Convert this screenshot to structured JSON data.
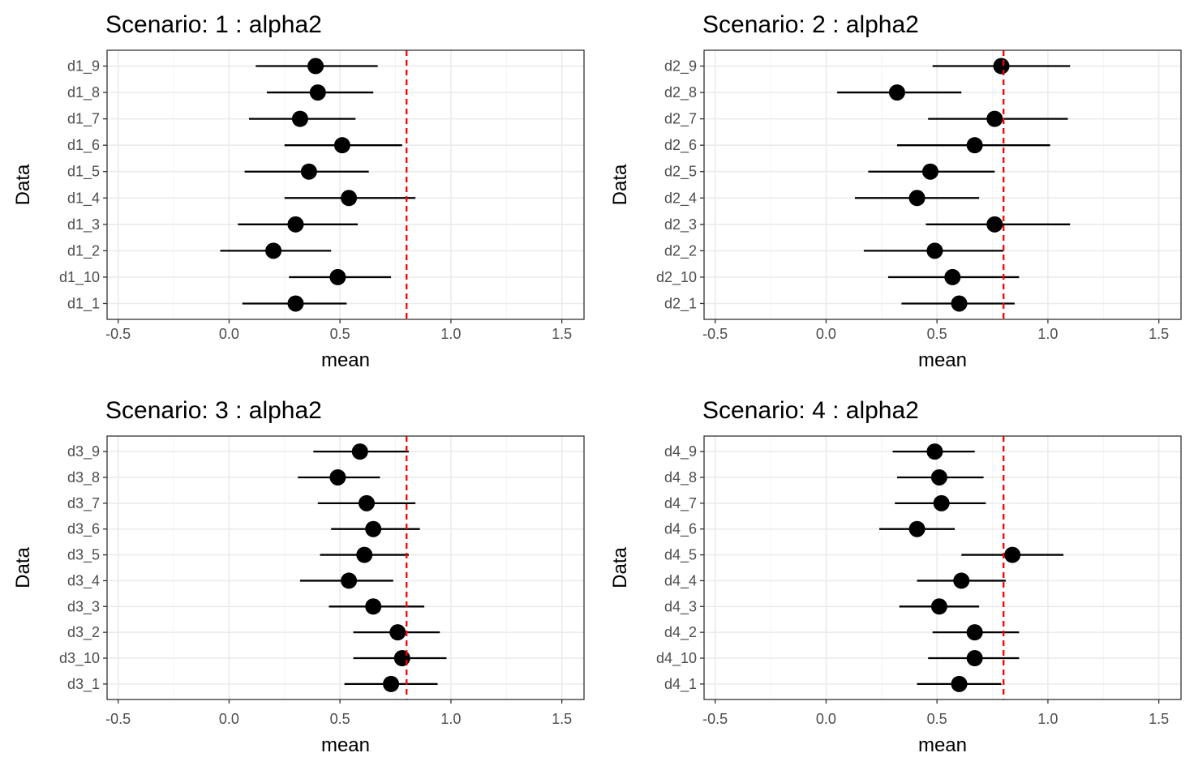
{
  "chart_data": [
    {
      "type": "scatter",
      "title": "Scenario: 1 : alpha2",
      "xlabel": "mean",
      "ylabel": "Data",
      "xlim": [
        -0.55,
        1.6
      ],
      "xticks": [
        "-0.5",
        "0.0",
        "0.5",
        "1.0",
        "1.5"
      ],
      "reference_line": 0.8,
      "categories": [
        "d1_1",
        "d1_10",
        "d1_2",
        "d1_3",
        "d1_4",
        "d1_5",
        "d1_6",
        "d1_7",
        "d1_8",
        "d1_9"
      ],
      "values": [
        0.3,
        0.49,
        0.2,
        0.3,
        0.54,
        0.36,
        0.51,
        0.32,
        0.4,
        0.39
      ],
      "lower": [
        0.06,
        0.27,
        -0.04,
        0.04,
        0.25,
        0.07,
        0.25,
        0.09,
        0.17,
        0.12
      ],
      "upper": [
        0.53,
        0.73,
        0.46,
        0.58,
        0.84,
        0.63,
        0.78,
        0.57,
        0.65,
        0.67
      ]
    },
    {
      "type": "scatter",
      "title": "Scenario: 2 : alpha2",
      "xlabel": "mean",
      "ylabel": "Data",
      "xlim": [
        -0.55,
        1.6
      ],
      "xticks": [
        "-0.5",
        "0.0",
        "0.5",
        "1.0",
        "1.5"
      ],
      "reference_line": 0.8,
      "categories": [
        "d2_1",
        "d2_10",
        "d2_2",
        "d2_3",
        "d2_4",
        "d2_5",
        "d2_6",
        "d2_7",
        "d2_8",
        "d2_9"
      ],
      "values": [
        0.6,
        0.57,
        0.49,
        0.76,
        0.41,
        0.47,
        0.67,
        0.76,
        0.32,
        0.79
      ],
      "lower": [
        0.34,
        0.28,
        0.17,
        0.45,
        0.13,
        0.19,
        0.32,
        0.46,
        0.05,
        0.48
      ],
      "upper": [
        0.85,
        0.87,
        0.8,
        1.1,
        0.69,
        0.76,
        1.01,
        1.09,
        0.61,
        1.1
      ]
    },
    {
      "type": "scatter",
      "title": "Scenario: 3 : alpha2",
      "xlabel": "mean",
      "ylabel": "Data",
      "xlim": [
        -0.55,
        1.6
      ],
      "xticks": [
        "-0.5",
        "0.0",
        "0.5",
        "1.0",
        "1.5"
      ],
      "reference_line": 0.8,
      "categories": [
        "d3_1",
        "d3_10",
        "d3_2",
        "d3_3",
        "d3_4",
        "d3_5",
        "d3_6",
        "d3_7",
        "d3_8",
        "d3_9"
      ],
      "values": [
        0.73,
        0.78,
        0.76,
        0.65,
        0.54,
        0.61,
        0.65,
        0.62,
        0.49,
        0.59
      ],
      "lower": [
        0.52,
        0.56,
        0.56,
        0.45,
        0.32,
        0.41,
        0.46,
        0.4,
        0.31,
        0.38
      ],
      "upper": [
        0.94,
        0.98,
        0.95,
        0.88,
        0.74,
        0.81,
        0.86,
        0.84,
        0.68,
        0.81
      ]
    },
    {
      "type": "scatter",
      "title": "Scenario: 4 : alpha2",
      "xlabel": "mean",
      "ylabel": "Data",
      "xlim": [
        -0.55,
        1.6
      ],
      "xticks": [
        "-0.5",
        "0.0",
        "0.5",
        "1.0",
        "1.5"
      ],
      "reference_line": 0.8,
      "categories": [
        "d4_1",
        "d4_10",
        "d4_2",
        "d4_3",
        "d4_4",
        "d4_5",
        "d4_6",
        "d4_7",
        "d4_8",
        "d4_9"
      ],
      "values": [
        0.6,
        0.67,
        0.67,
        0.51,
        0.61,
        0.84,
        0.41,
        0.52,
        0.51,
        0.49
      ],
      "lower": [
        0.41,
        0.46,
        0.48,
        0.33,
        0.41,
        0.61,
        0.24,
        0.31,
        0.32,
        0.3
      ],
      "upper": [
        0.79,
        0.87,
        0.87,
        0.69,
        0.81,
        1.07,
        0.58,
        0.72,
        0.71,
        0.67
      ]
    }
  ]
}
